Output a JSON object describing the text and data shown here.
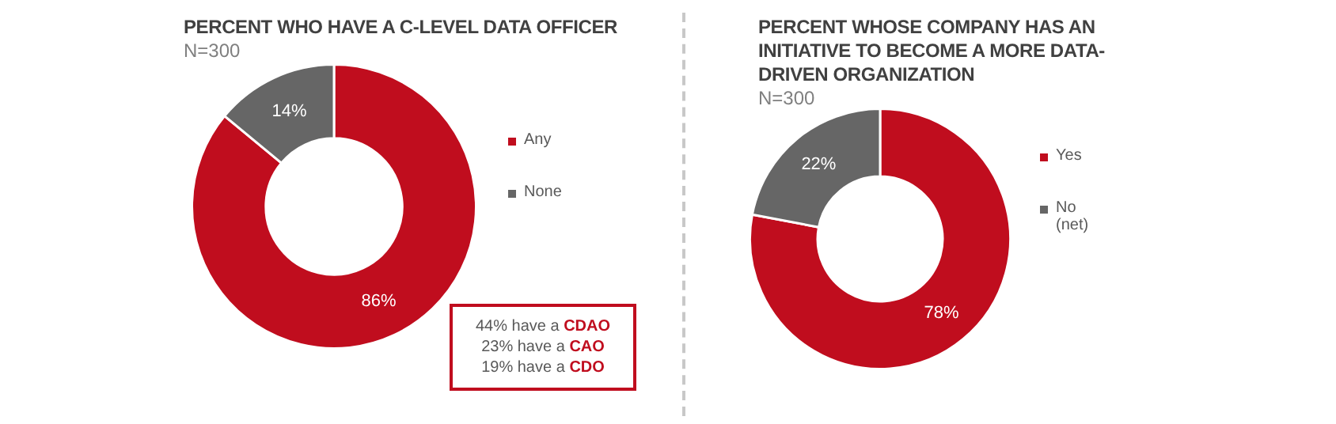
{
  "chart_data": [
    {
      "type": "donut",
      "title": "PERCENT WHO HAVE A C-LEVEL DATA OFFICER",
      "subtitle": "N=300",
      "categories": [
        "Any",
        "None"
      ],
      "values": [
        86,
        14
      ],
      "value_labels": [
        "86%",
        "14%"
      ],
      "colors": [
        "#c00d1e",
        "#666666"
      ],
      "legend": "right",
      "annotations": [
        "44% have a CDAO",
        "23% have a CAO",
        "19% have a CDO"
      ]
    },
    {
      "type": "donut",
      "title": "PERCENT WHOSE COMPANY HAS AN INITIATIVE TO BECOME A MORE DATA-DRIVEN ORGANIZATION",
      "subtitle": "N=300",
      "categories": [
        "Yes",
        "No (net)"
      ],
      "values": [
        78,
        22
      ],
      "value_labels": [
        "78%",
        "22%"
      ],
      "colors": [
        "#c00d1e",
        "#666666"
      ],
      "legend": "right"
    }
  ]
}
